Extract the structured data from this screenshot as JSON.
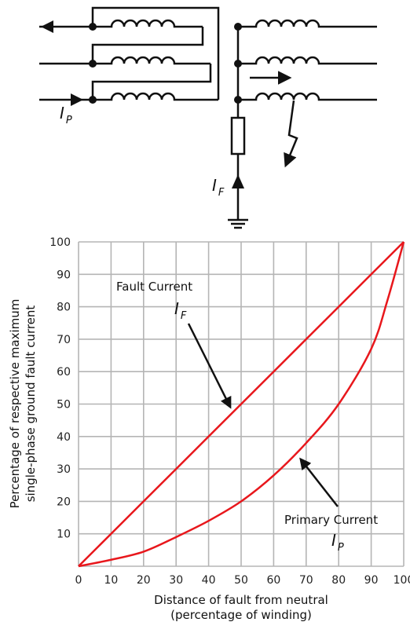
{
  "schematic": {
    "primary_current_symbol": "I",
    "primary_current_subscript": "P",
    "fault_current_symbol": "I",
    "fault_current_subscript": "F"
  },
  "chart_data": {
    "type": "line",
    "xlabel_line1": "Distance of fault from neutral",
    "xlabel_line2": "(percentage of winding)",
    "ylabel_line1": "Percentage of respective maximum",
    "ylabel_line2": "single-phase ground fault current",
    "xlim": [
      0,
      100
    ],
    "ylim": [
      0,
      100
    ],
    "grid": true,
    "x_ticks": [
      "0",
      "10",
      "20",
      "30",
      "40",
      "50",
      "60",
      "70",
      "80",
      "90",
      "100"
    ],
    "y_ticks": [
      "10",
      "20",
      "30",
      "40",
      "50",
      "60",
      "70",
      "80",
      "90",
      "100"
    ],
    "line_color": "#e8171c",
    "series": [
      {
        "name": "Fault Current",
        "symbol": "I",
        "subscript": "F",
        "x": [
          0,
          10,
          20,
          30,
          40,
          50,
          60,
          70,
          80,
          90,
          100
        ],
        "y": [
          0,
          10,
          20,
          30,
          40,
          50,
          60,
          70,
          80,
          90,
          100
        ]
      },
      {
        "name": "Primary Current",
        "symbol": "I",
        "subscript": "P",
        "x": [
          0,
          10,
          20,
          30,
          40,
          50,
          60,
          70,
          80,
          90,
          95,
          100
        ],
        "y": [
          0,
          2,
          4.5,
          9,
          14,
          20,
          28,
          38,
          50,
          67,
          82,
          100
        ]
      }
    ]
  }
}
